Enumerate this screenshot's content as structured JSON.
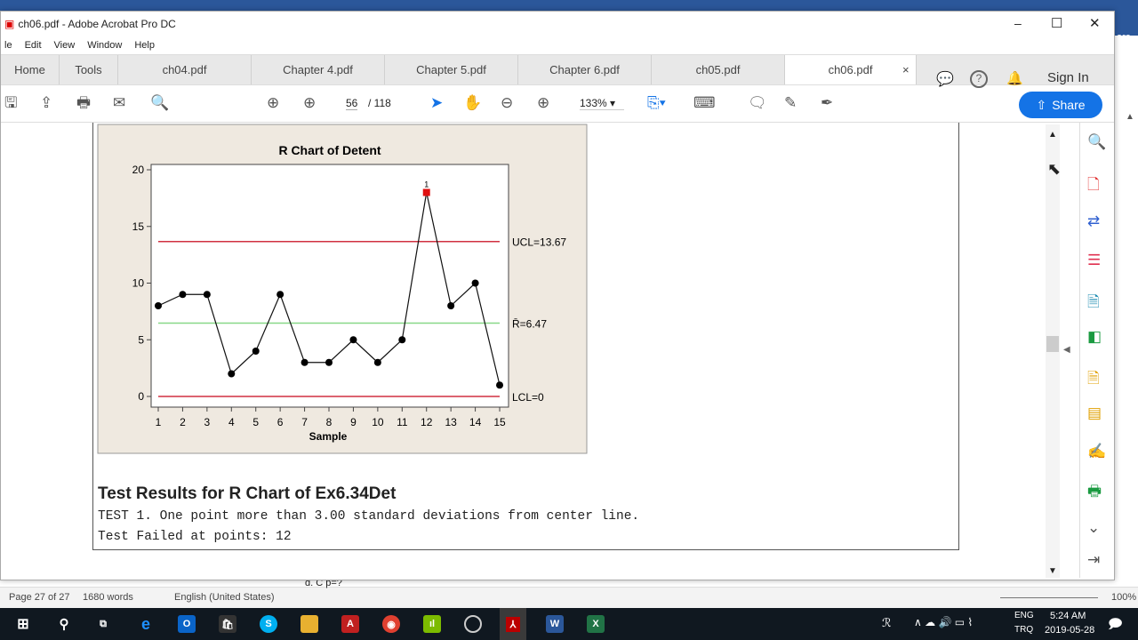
{
  "window": {
    "title": "ch06.pdf - Adobe Acrobat Pro DC",
    "minimize": "–",
    "maximize": "☐",
    "close": "✕"
  },
  "menu": [
    "le",
    "Edit",
    "View",
    "Window",
    "Help"
  ],
  "tabs": {
    "home": "Home",
    "tools": "Tools",
    "docs": [
      "ch04.pdf",
      "Chapter 4.pdf",
      "Chapter 5.pdf",
      "Chapter 6.pdf",
      "ch05.pdf",
      "ch06.pdf"
    ],
    "active": "ch06.pdf",
    "close": "×",
    "sign_in": "Sign In"
  },
  "toolbar": {
    "page_current": "56",
    "page_total": "/ 118",
    "zoom": "133%",
    "share": "Share"
  },
  "chart_data": {
    "type": "line",
    "title": "R Chart of Detent",
    "xlabel": "Sample",
    "ylabel": "",
    "x": [
      1,
      2,
      3,
      4,
      5,
      6,
      7,
      8,
      9,
      10,
      11,
      12,
      13,
      14,
      15
    ],
    "values": [
      8,
      9,
      9,
      2,
      4,
      9,
      3,
      3,
      5,
      3,
      5,
      18,
      8,
      10,
      1
    ],
    "ylim": [
      -1,
      20.5
    ],
    "yticks": [
      0,
      5,
      10,
      15,
      20
    ],
    "xtick_labels": [
      "1",
      "2",
      "3",
      "4",
      "5",
      "6",
      "7",
      "8",
      "9",
      "10",
      "11",
      "12",
      "13",
      "14",
      "15"
    ],
    "ytick_labels": [
      "0",
      "5",
      "10",
      "15",
      "20"
    ],
    "control_lines": [
      {
        "label": "UCL=13.67",
        "value": 13.67,
        "color": "#d03040"
      },
      {
        "label": "R̄=6.47",
        "value": 6.47,
        "color": "#88d888"
      },
      {
        "label": "LCL=0",
        "value": 0,
        "color": "#d03040"
      }
    ],
    "flagged": {
      "sample": 12,
      "label": "1",
      "color": "#e01010"
    }
  },
  "results": {
    "heading": "Test Results for R Chart of Ex6.34Det",
    "line1": "TEST 1. One point more than 3.00 standard deviations from center line.",
    "line2": "Test Failed at points:  12"
  },
  "word_status": {
    "page": "Page 27 of 27",
    "words": "1680 words",
    "language": "English (United States)",
    "zoom": "100%",
    "doc_text": "d. C  p=?"
  },
  "taskbar": {
    "lang1": "ENG",
    "lang2": "TRQ",
    "time": "5:24 AM",
    "date": "2019-05-28"
  }
}
